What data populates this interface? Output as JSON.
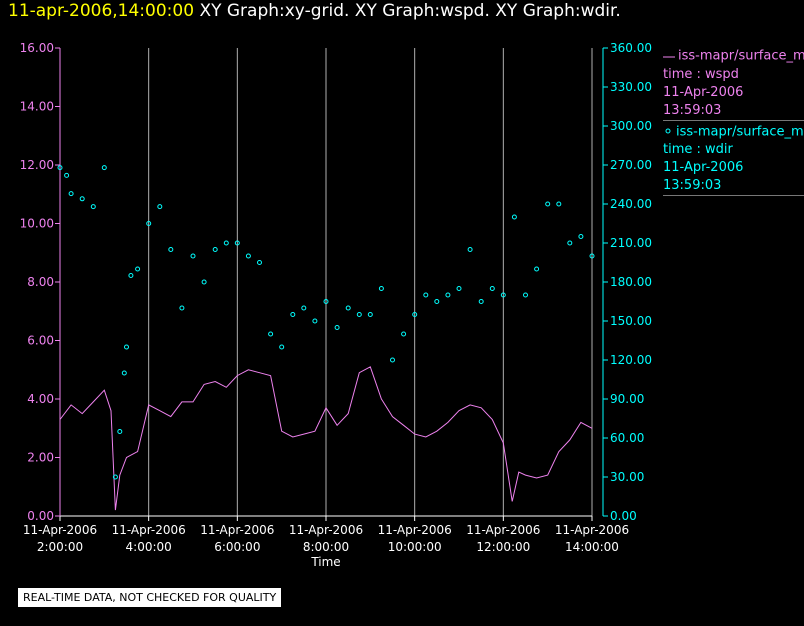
{
  "header": {
    "timestamp": "11-apr-2006,14:00:00",
    "graphs": "XY Graph:xy-grid.  XY Graph:wspd.  XY Graph:wdir."
  },
  "legend": [
    {
      "line1": "iss-mapr/surface_m",
      "line2": "time : wspd",
      "line3": "11-Apr-2006",
      "line4": "13:59:03"
    },
    {
      "line1": "iss-mapr/surface_m",
      "line2": "time : wdir",
      "line3": "11-Apr-2006",
      "line4": "13:59:03"
    }
  ],
  "disclaimer": "REAL-TIME DATA, NOT CHECKED FOR QUALITY",
  "colors": {
    "wspd": "#ee82ee",
    "wdir": "#00ffff",
    "grid": "#b0b0b0",
    "background": "#000000"
  },
  "chart_data": {
    "type": "line",
    "xlabel": "Time",
    "x_ticks": [
      {
        "date": "11-Apr-2006",
        "time": "2:00:00"
      },
      {
        "date": "11-Apr-2006",
        "time": "4:00:00"
      },
      {
        "date": "11-Apr-2006",
        "time": "6:00:00"
      },
      {
        "date": "11-Apr-2006",
        "time": "8:00:00"
      },
      {
        "date": "11-Apr-2006",
        "time": "10:00:00"
      },
      {
        "date": "11-Apr-2006",
        "time": "12:00:00"
      },
      {
        "date": "11-Apr-2006",
        "time": "14:00:00"
      }
    ],
    "x_range_hours": [
      2,
      14
    ],
    "y_left": {
      "ticks": [
        "0.00",
        "2.00",
        "4.00",
        "6.00",
        "8.00",
        "10.00",
        "12.00",
        "14.00",
        "16.00"
      ],
      "range": [
        0,
        16
      ]
    },
    "y_right": {
      "ticks": [
        "0.00",
        "30.00",
        "60.00",
        "90.00",
        "120.00",
        "150.00",
        "180.00",
        "210.00",
        "240.00",
        "270.00",
        "300.00",
        "330.00",
        "360.00"
      ],
      "range": [
        0,
        360
      ]
    },
    "grid": "vertical",
    "series": [
      {
        "name": "iss-mapr/surface_m time : wspd",
        "axis": "left",
        "style": "line",
        "x_hours": [
          2.0,
          2.25,
          2.5,
          2.75,
          3.0,
          3.15,
          3.25,
          3.35,
          3.5,
          3.75,
          4.0,
          4.25,
          4.5,
          4.75,
          5.0,
          5.25,
          5.5,
          5.75,
          6.0,
          6.25,
          6.5,
          6.75,
          7.0,
          7.25,
          7.5,
          7.75,
          8.0,
          8.25,
          8.5,
          8.75,
          9.0,
          9.25,
          9.5,
          9.75,
          10.0,
          10.25,
          10.5,
          10.75,
          11.0,
          11.25,
          11.5,
          11.75,
          12.0,
          12.2,
          12.35,
          12.5,
          12.75,
          13.0,
          13.25,
          13.5,
          13.75,
          14.0
        ],
        "values": [
          3.3,
          3.8,
          3.5,
          3.9,
          4.3,
          3.6,
          0.2,
          1.4,
          2.0,
          2.2,
          3.8,
          3.6,
          3.4,
          3.9,
          3.9,
          4.5,
          4.6,
          4.4,
          4.8,
          5.0,
          4.9,
          4.8,
          2.9,
          2.7,
          2.8,
          2.9,
          3.7,
          3.1,
          3.5,
          4.9,
          5.1,
          4.0,
          3.4,
          3.1,
          2.8,
          2.7,
          2.9,
          3.2,
          3.6,
          3.8,
          3.7,
          3.3,
          2.5,
          0.5,
          1.5,
          1.4,
          1.3,
          1.4,
          2.2,
          2.6,
          3.2,
          3.0
        ]
      },
      {
        "name": "iss-mapr/surface_m time : wdir",
        "axis": "right",
        "style": "points",
        "x_hours": [
          2.0,
          2.15,
          2.25,
          2.5,
          2.75,
          3.0,
          3.25,
          3.35,
          3.45,
          3.5,
          3.6,
          3.75,
          4.0,
          4.25,
          4.5,
          4.75,
          5.0,
          5.25,
          5.5,
          5.75,
          6.0,
          6.25,
          6.5,
          6.75,
          7.0,
          7.25,
          7.5,
          7.75,
          8.0,
          8.25,
          8.5,
          8.75,
          9.0,
          9.25,
          9.5,
          9.75,
          10.0,
          10.25,
          10.5,
          10.75,
          11.0,
          11.25,
          11.5,
          11.75,
          12.0,
          12.25,
          12.5,
          12.75,
          13.0,
          13.25,
          13.5,
          13.75,
          14.0
        ],
        "values": [
          268,
          262,
          248,
          244,
          238,
          268,
          30,
          65,
          110,
          130,
          185,
          190,
          225,
          238,
          205,
          160,
          200,
          180,
          205,
          210,
          210,
          200,
          195,
          140,
          130,
          155,
          160,
          150,
          165,
          145,
          160,
          155,
          155,
          175,
          120,
          140,
          155,
          170,
          165,
          170,
          175,
          205,
          165,
          175,
          170,
          230,
          170,
          190,
          240,
          240,
          210,
          215,
          200
        ]
      }
    ]
  }
}
